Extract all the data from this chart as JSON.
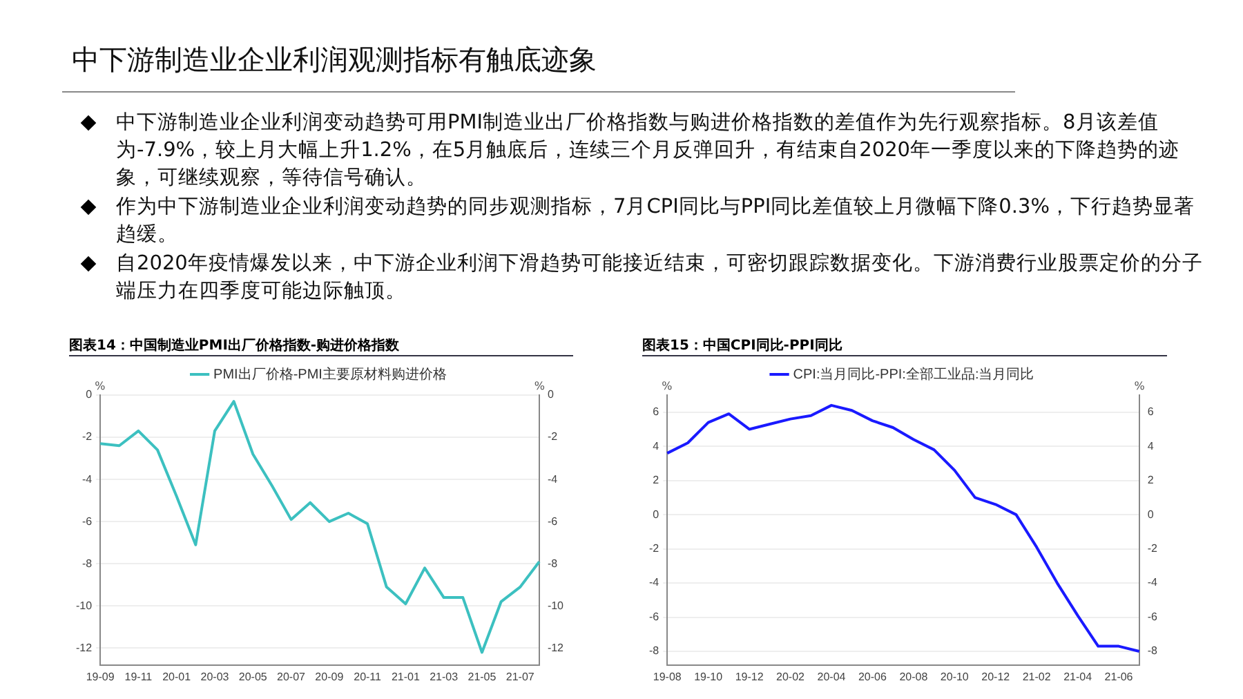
{
  "chart_data": [
    {
      "type": "other",
      "title": "中下游制造业企业利润观测指标有触底迹象",
      "annotations": [
        "中下游制造业企业利润变动趋势可用PMI制造业出厂价格指数与购进价格指数的差值作为先行观察指标。8月该差值为-7.9%，较上月大幅上升1.2%，在5月触底后，连续三个月反弹回升，有结束自2020年一季度以来的下降趋势的迹象，可继续观察，等待信号确认。",
        " 作为中下游制造业企业利润变动趋势的同步观测指标，7月CPI同比与PPI同比差值较上月微幅下降0.3%，下行趋势显著趋缓。",
        " 自2020年疫情爆发以来，中下游企业利润下滑趋势可能接近结束，可密切跟踪数据变化。下游消费行业股票定价的分子端压力在四季度可能边际触顶。"
      ]
    },
    {
      "type": "line",
      "title": "图表14：中国制造业PMI出厂价格指数-购进价格指数",
      "ylabel": "%",
      "y2label": "%",
      "categories": [
        "19-09",
        null,
        "19-11",
        null,
        "20-01",
        null,
        "20-03",
        null,
        "20-05",
        null,
        "20-07",
        null,
        "20-09",
        null,
        "20-11",
        null,
        "21-01",
        null,
        "21-03",
        null,
        "21-05",
        null,
        "21-07",
        null
      ],
      "series": [
        {
          "name": "PMI出厂价格-PMI主要原材料购进价格",
          "color": "#3cc0c0",
          "values": [
            -2.3,
            -2.4,
            -1.7,
            -2.6,
            -4.8,
            -7.1,
            -1.7,
            -0.3,
            -2.8,
            -4.3,
            -5.9,
            -5.1,
            -6.0,
            -5.6,
            -6.1,
            -9.1,
            -9.9,
            -8.2,
            -9.6,
            -9.6,
            -12.2,
            -9.8,
            -9.1,
            -7.9
          ]
        }
      ],
      "ylim": [
        -12.8,
        0
      ],
      "yticks": [
        -12,
        -10,
        -8,
        -6,
        -4,
        -2,
        0
      ],
      "y2lim": [
        -12.8,
        0
      ],
      "y2ticks": [
        -12,
        -10,
        -8,
        -6,
        -4,
        -2,
        0
      ],
      "grid": "y",
      "legend": "top",
      "marker": "none",
      "line_style": "solid"
    },
    {
      "type": "line",
      "title": "图表15：中国CPI同比-PPI同比",
      "ylabel": "%",
      "y2label": "%",
      "categories": [
        "19-08",
        null,
        "19-10",
        null,
        "19-12",
        null,
        "20-02",
        null,
        "20-04",
        null,
        "20-06",
        null,
        "20-08",
        null,
        "20-10",
        null,
        "20-12",
        null,
        "21-02",
        null,
        "21-04",
        null,
        "21-06",
        null
      ],
      "series": [
        {
          "name": "CPI:当月同比-PPI:全部工业品:当月同比",
          "color": "#1a1aff",
          "values": [
            3.6,
            4.2,
            5.4,
            5.9,
            5.0,
            5.3,
            5.6,
            5.8,
            6.4,
            6.1,
            5.5,
            5.1,
            4.4,
            3.8,
            2.6,
            1.0,
            0.6,
            0.0,
            -1.9,
            -4.0,
            -5.9,
            -7.7,
            -7.7,
            -8.0
          ]
        }
      ],
      "ylim": [
        -8.8,
        7
      ],
      "yticks": [
        -8,
        -6,
        -4,
        -2,
        0,
        2,
        4,
        6
      ],
      "y2lim": [
        -8.8,
        7
      ],
      "y2ticks": [
        -8,
        -6,
        -4,
        -2,
        0,
        2,
        4,
        6
      ],
      "grid": "y",
      "legend": "top",
      "marker": "none",
      "line_style": "solid"
    }
  ]
}
